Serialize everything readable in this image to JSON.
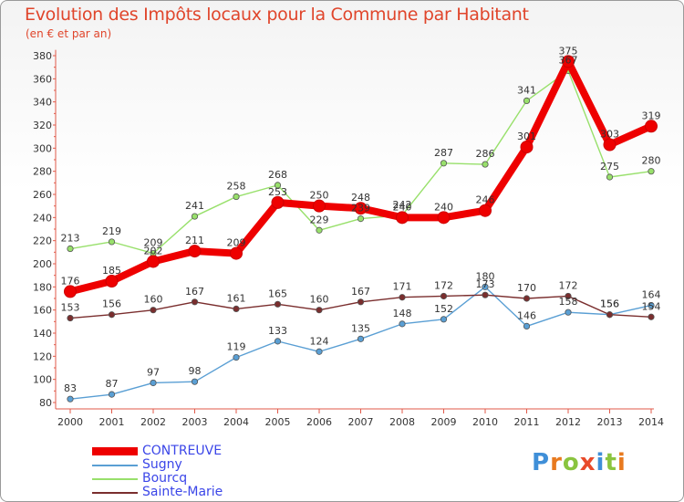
{
  "header": {
    "title": "Evolution des Impôts locaux pour la Commune par Habitant",
    "subtitle": "(en € et par an)"
  },
  "chart_data": {
    "type": "line",
    "title": "Evolution des Impôts locaux pour la Commune par Habitant",
    "subtitle": "(en € et par an)",
    "xlabel": "",
    "ylabel": "",
    "categories": [
      "2000",
      "2001",
      "2002",
      "2003",
      "2004",
      "2005",
      "2006",
      "2007",
      "2008",
      "2009",
      "2010",
      "2011",
      "2012",
      "2013",
      "2014"
    ],
    "y_ticks": [
      80,
      100,
      120,
      140,
      160,
      180,
      200,
      220,
      240,
      260,
      280,
      300,
      320,
      340,
      360,
      380
    ],
    "ylim": [
      80,
      385
    ],
    "grid": false,
    "legend_position": "bottom-left",
    "series": [
      {
        "name": "CONTREUVE",
        "color": "#ee0000",
        "values": [
          176,
          185,
          202,
          211,
          209,
          253,
          250,
          248,
          240,
          240,
          246,
          301,
          375,
          303,
          319
        ]
      },
      {
        "name": "Sugny",
        "color": "#5a9fd4",
        "values": [
          83,
          87,
          97,
          98,
          119,
          133,
          124,
          135,
          148,
          152,
          180,
          146,
          158,
          156,
          164
        ]
      },
      {
        "name": "Bourcq",
        "color": "#98e06b",
        "values": [
          213,
          219,
          209,
          241,
          258,
          268,
          229,
          239,
          242,
          287,
          286,
          341,
          367,
          275,
          280
        ]
      },
      {
        "name": "Sainte-Marie",
        "color": "#7a2e2e",
        "values": [
          153,
          156,
          160,
          167,
          161,
          165,
          160,
          167,
          171,
          172,
          173,
          170,
          172,
          156,
          154
        ]
      }
    ]
  },
  "legend": {
    "items": [
      {
        "label": "CONTREUVE",
        "color": "#ee0000"
      },
      {
        "label": "Sugny",
        "color": "#5a9fd4"
      },
      {
        "label": "Bourcq",
        "color": "#98e06b"
      },
      {
        "label": "Sainte-Marie",
        "color": "#7a2e2e"
      }
    ]
  },
  "logo": {
    "letters": [
      "P",
      "r",
      "o",
      "x",
      "i",
      "t",
      "i"
    ],
    "colors": [
      "#3f8fd8",
      "#e87a1f",
      "#8ac43f",
      "#e84a2a",
      "#3f8fd8",
      "#8ac43f",
      "#e87a1f"
    ]
  }
}
